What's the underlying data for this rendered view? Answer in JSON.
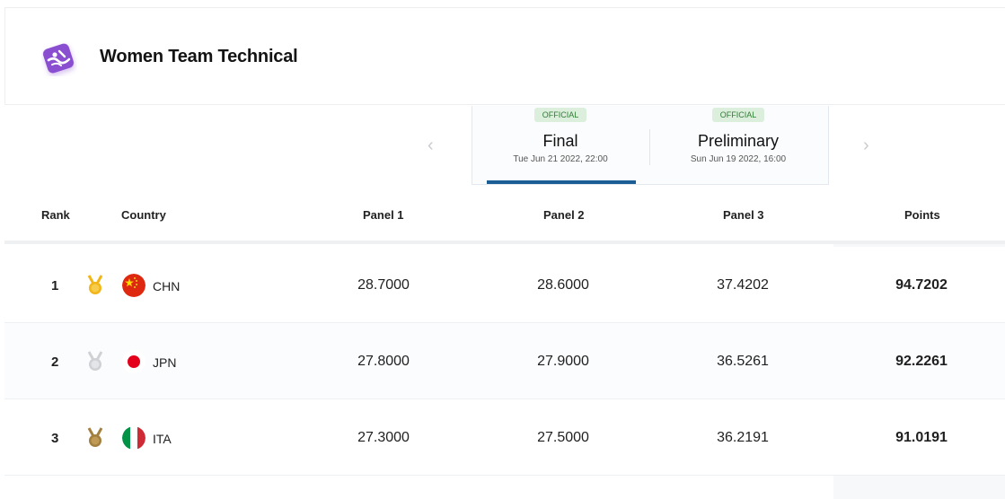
{
  "header": {
    "title": "Women Team Technical",
    "logo_icon": "artistic-swimming-icon",
    "logo_color": "#8a4fd1"
  },
  "tabs": [
    {
      "badge": "OFFICIAL",
      "name": "Final",
      "date": "Tue Jun 21 2022, 22:00",
      "active": true
    },
    {
      "badge": "OFFICIAL",
      "name": "Preliminary",
      "date": "Sun Jun 19 2022, 16:00",
      "active": false
    }
  ],
  "nav": {
    "prev_icon": "chevron-left-icon",
    "next_icon": "chevron-right-icon",
    "prev_symbol": "‹",
    "next_symbol": "›"
  },
  "table": {
    "columns": [
      "Rank",
      "Country",
      "Panel 1",
      "Panel 2",
      "Panel 3",
      "Points"
    ],
    "rows": [
      {
        "rank": "1",
        "medal": "gold-medal-icon",
        "flag": "china-flag-icon",
        "country": "CHN",
        "panel1": "28.7000",
        "panel2": "28.6000",
        "panel3": "37.4202",
        "points": "94.7202"
      },
      {
        "rank": "2",
        "medal": "silver-medal-icon",
        "flag": "japan-flag-icon",
        "country": "JPN",
        "panel1": "27.8000",
        "panel2": "27.9000",
        "panel3": "36.5261",
        "points": "92.2261"
      },
      {
        "rank": "3",
        "medal": "bronze-medal-icon",
        "flag": "italy-flag-icon",
        "country": "ITA",
        "panel1": "27.3000",
        "panel2": "27.5000",
        "panel3": "36.2191",
        "points": "91.0191"
      }
    ]
  },
  "colors": {
    "gold": "#f2b619",
    "silver": "#cfd2d5",
    "bronze": "#a3803f",
    "accent": "#1b5e96",
    "official_badge_bg": "#dbefdc",
    "official_badge_text": "#2e7d32"
  }
}
